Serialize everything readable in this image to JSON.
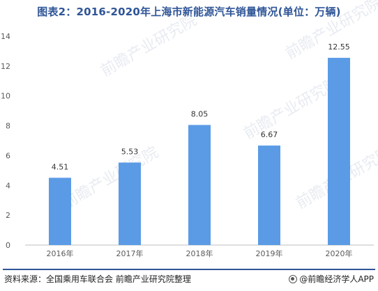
{
  "title": "图表2：2016-2020年上海市新能源汽车销量情况(单位：万辆)",
  "source": "资料来源：全国乘用车联合会 前瞻产业研究院整理",
  "brand": "@前瞻经济学人APP",
  "watermark": "前瞻产业研究院",
  "colors": {
    "bar": "#5b9be6",
    "title": "#2f5597",
    "axis": "#bfbfbf",
    "text": "#595959"
  },
  "chart_data": {
    "type": "bar",
    "categories": [
      "2016年",
      "2017年",
      "2018年",
      "2019年",
      "2020年"
    ],
    "values": [
      4.51,
      5.53,
      8.05,
      6.67,
      12.55
    ],
    "data_labels": [
      "4.51",
      "5.53",
      "8.05",
      "6.67",
      "12.55"
    ],
    "yticks": [
      0,
      2,
      4,
      6,
      8,
      10,
      12,
      14
    ],
    "ylim": [
      0,
      14
    ],
    "grid": false,
    "legend": false
  }
}
